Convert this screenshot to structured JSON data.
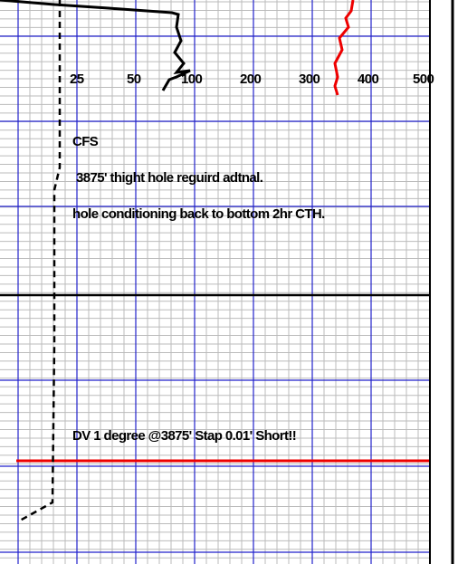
{
  "track": {
    "scale_labels": [
      "25",
      "50",
      "100",
      "200",
      "300",
      "400",
      "500"
    ]
  },
  "notes": {
    "heading": "CFS",
    "line_1": "3875' thight hole reguird adtnal.",
    "line_2": "hole conditioning back to bottom 2hr CTH."
  },
  "survey_note": "DV 1 degree @3875' Stap 0.01' Short!!"
}
